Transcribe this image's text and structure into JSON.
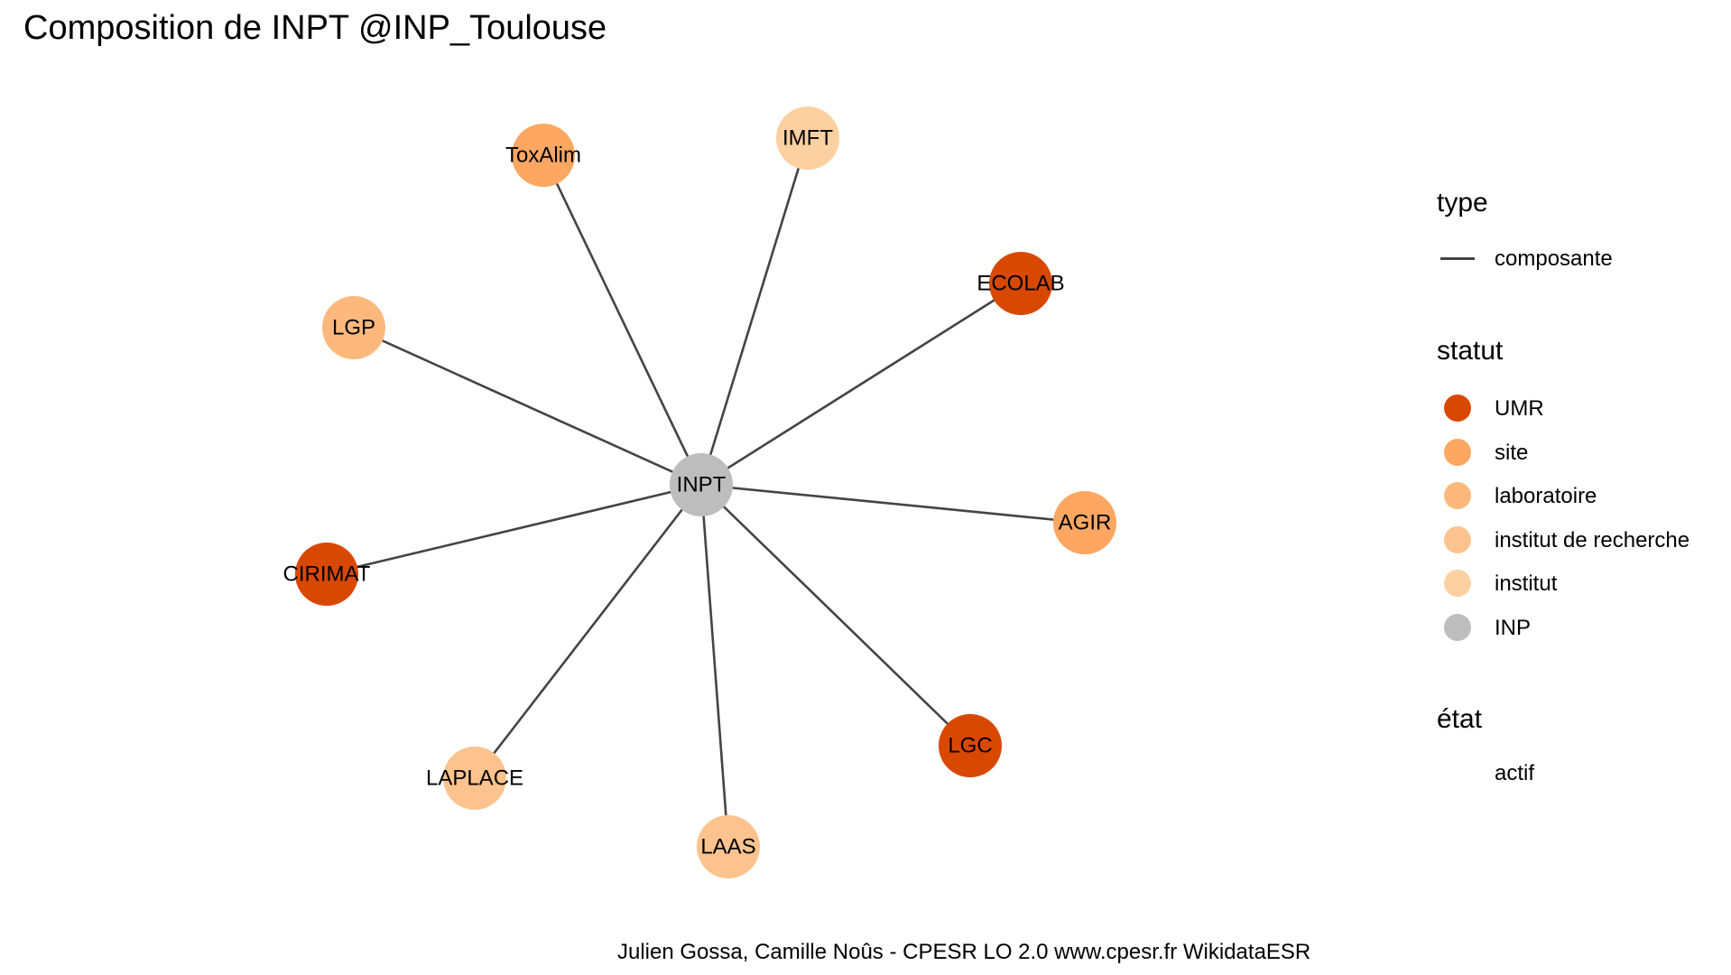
{
  "title": "Composition de INPT @INP_Toulouse",
  "caption": "Julien Gossa, Camille Noûs - CPESR LO 2.0 www.cpesr.fr WikidataESR",
  "colors": {
    "edge": "#444444",
    "UMR": "#d94801",
    "site": "#fda762",
    "laboratoire": "#fdb97d",
    "institut de recherche": "#fdc38f",
    "institut": "#fdd0a2",
    "INP": "#bdbdbd"
  },
  "graph": {
    "center": "INPT",
    "nodes": [
      {
        "id": "INPT",
        "statut": "INP"
      },
      {
        "id": "ToxAlim",
        "statut": "site"
      },
      {
        "id": "IMFT",
        "statut": "institut"
      },
      {
        "id": "ECOLAB",
        "statut": "UMR"
      },
      {
        "id": "LGP",
        "statut": "laboratoire"
      },
      {
        "id": "AGIR",
        "statut": "site"
      },
      {
        "id": "CIRIMAT",
        "statut": "UMR"
      },
      {
        "id": "LGC",
        "statut": "UMR"
      },
      {
        "id": "LAPLACE",
        "statut": "institut de recherche"
      },
      {
        "id": "LAAS",
        "statut": "institut de recherche"
      }
    ],
    "edges": [
      {
        "from": "INPT",
        "to": "ToxAlim",
        "type": "composante"
      },
      {
        "from": "INPT",
        "to": "IMFT",
        "type": "composante"
      },
      {
        "from": "INPT",
        "to": "ECOLAB",
        "type": "composante"
      },
      {
        "from": "INPT",
        "to": "LGP",
        "type": "composante"
      },
      {
        "from": "INPT",
        "to": "AGIR",
        "type": "composante"
      },
      {
        "from": "INPT",
        "to": "CIRIMAT",
        "type": "composante"
      },
      {
        "from": "INPT",
        "to": "LGC",
        "type": "composante"
      },
      {
        "from": "INPT",
        "to": "LAPLACE",
        "type": "composante"
      },
      {
        "from": "INPT",
        "to": "LAAS",
        "type": "composante"
      }
    ]
  },
  "legend": {
    "type": {
      "title": "type",
      "items": [
        "composante"
      ]
    },
    "statut": {
      "title": "statut",
      "items": [
        "UMR",
        "site",
        "laboratoire",
        "institut de recherche",
        "institut",
        "INP"
      ]
    },
    "etat": {
      "title": "état",
      "items": [
        "actif"
      ]
    }
  }
}
